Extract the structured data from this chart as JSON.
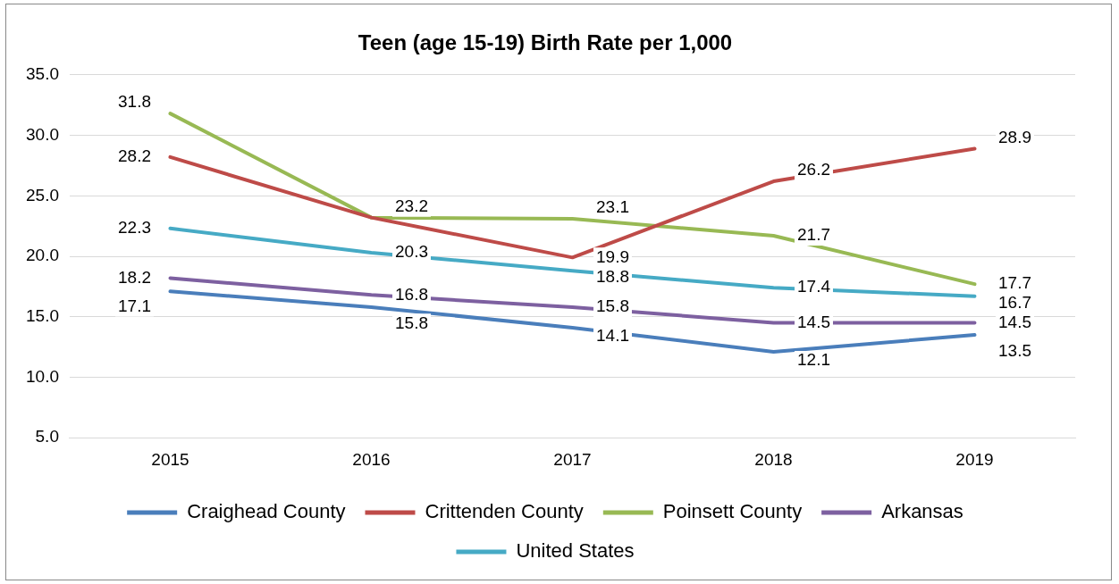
{
  "chart_data": {
    "type": "line",
    "title": "Teen (age 15-19) Birth Rate per 1,000",
    "categories": [
      "2015",
      "2016",
      "2017",
      "2018",
      "2019"
    ],
    "series": [
      {
        "name": "Craighead County",
        "color": "#4a7ebb",
        "values": [
          17.1,
          15.8,
          14.1,
          12.1,
          13.5
        ]
      },
      {
        "name": "Crittenden County",
        "color": "#be4b48",
        "values": [
          28.2,
          23.2,
          19.9,
          26.2,
          28.9
        ],
        "value_labels": [
          "28.2",
          null,
          "19.9",
          "26.2",
          "28.9"
        ]
      },
      {
        "name": "Poinsett County",
        "color": "#98b954",
        "values": [
          31.8,
          23.2,
          23.1,
          21.7,
          17.7
        ]
      },
      {
        "name": "Arkansas",
        "color": "#7d60a0",
        "values": [
          18.2,
          16.8,
          15.8,
          14.5,
          14.5
        ]
      },
      {
        "name": "United States",
        "color": "#46aac5",
        "values": [
          22.3,
          20.3,
          18.8,
          17.4,
          16.7
        ]
      }
    ],
    "ylim": [
      5,
      35
    ],
    "yticks": [
      {
        "value": 5,
        "label": "5.0"
      },
      {
        "value": 10,
        "label": "10.0"
      },
      {
        "value": 15,
        "label": "15.0"
      },
      {
        "value": 20,
        "label": "20.0"
      },
      {
        "value": 25,
        "label": "25.0"
      },
      {
        "value": 30,
        "label": "30.0"
      },
      {
        "value": 35,
        "label": "35.0"
      }
    ],
    "grid": "y",
    "legend": "bottom",
    "marker": "none",
    "line_style": "solid",
    "data_labels": true
  }
}
